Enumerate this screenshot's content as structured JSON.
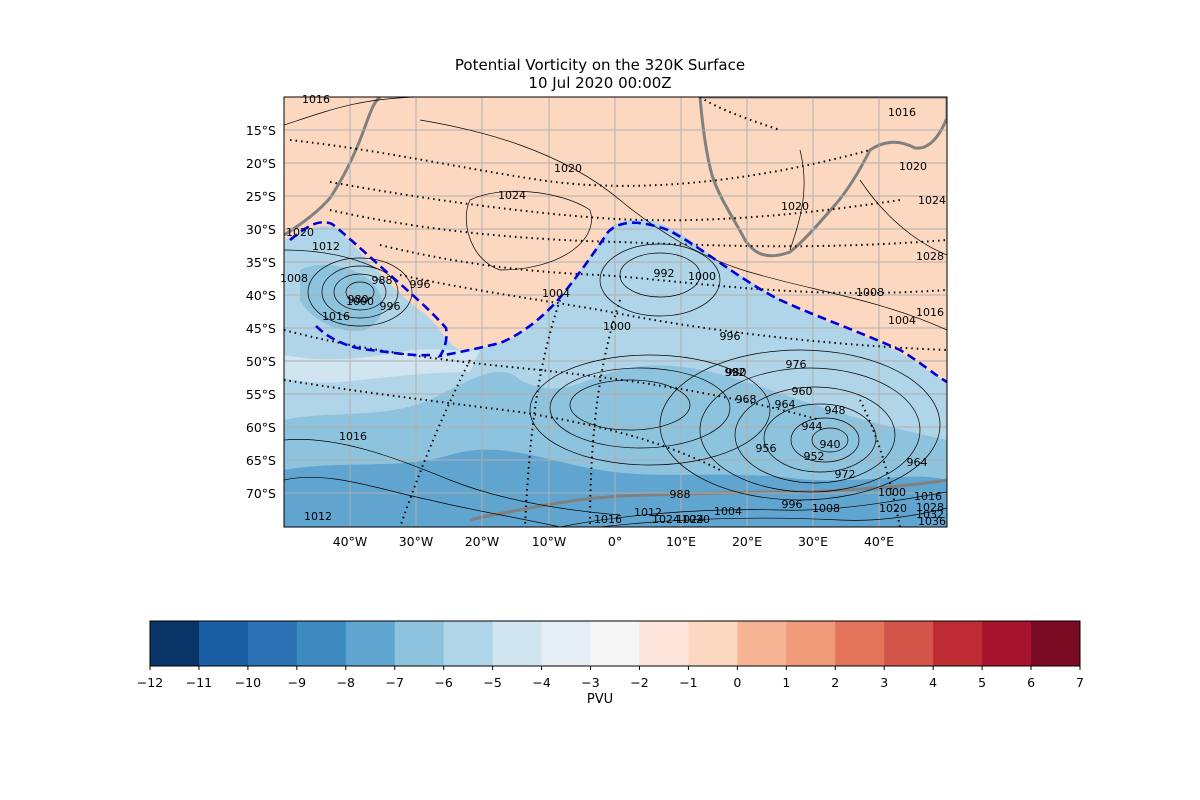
{
  "title": "Potential Vorticity on the 320K Surface",
  "subtitle": "10 Jul 2020 00:00Z",
  "map": {
    "lon_labels": [
      "40°W",
      "30°W",
      "20°W",
      "10°W",
      "0°",
      "10°E",
      "20°E",
      "30°E",
      "40°E"
    ],
    "lat_labels": [
      "15°S",
      "20°S",
      "25°S",
      "30°S",
      "35°S",
      "40°S",
      "45°S",
      "50°S",
      "55°S",
      "60°S",
      "65°S",
      "70°S"
    ],
    "contour_labels": [
      "1016",
      "1016",
      "1020",
      "1024",
      "1020",
      "1020",
      "1024",
      "1028",
      "1020",
      "1012",
      "1008",
      "988",
      "992",
      "996",
      "980",
      "1000",
      "1004",
      "996",
      "1000",
      "1016",
      "1000",
      "996",
      "992",
      "1008",
      "1004",
      "1016",
      "980",
      "976",
      "968",
      "964",
      "960",
      "948",
      "944",
      "940",
      "956",
      "952",
      "972",
      "964",
      "1016",
      "988",
      "1012",
      "1016",
      "1024",
      "1020",
      "1004",
      "996",
      "1008",
      "1000",
      "1020",
      "1016",
      "1028",
      "1032",
      "1036",
      "1012",
      "1024"
    ],
    "grid": true,
    "colors": {
      "pv_boundary": "#0000dd",
      "coastline": "#808080"
    }
  },
  "colorbar": {
    "label": "PVU",
    "ticks": [
      "−12",
      "−11",
      "−10",
      "−9",
      "−8",
      "−7",
      "−6",
      "−5",
      "−4",
      "−3",
      "−2",
      "−1",
      "0",
      "1",
      "2",
      "3",
      "4",
      "5",
      "6",
      "7"
    ],
    "colors": [
      "#083468",
      "#1b5ea3",
      "#2c71b3",
      "#3c8ac0",
      "#60a5cf",
      "#8ec3de",
      "#b1d5e8",
      "#d1e5f0",
      "#e4eef4",
      "#f6f6f6",
      "#fbe4da",
      "#fdd8c0",
      "#f6b494",
      "#ef9a78",
      "#e2745c",
      "#d35448",
      "#bd2b35",
      "#a5132c",
      "#7b0a23"
    ]
  }
}
